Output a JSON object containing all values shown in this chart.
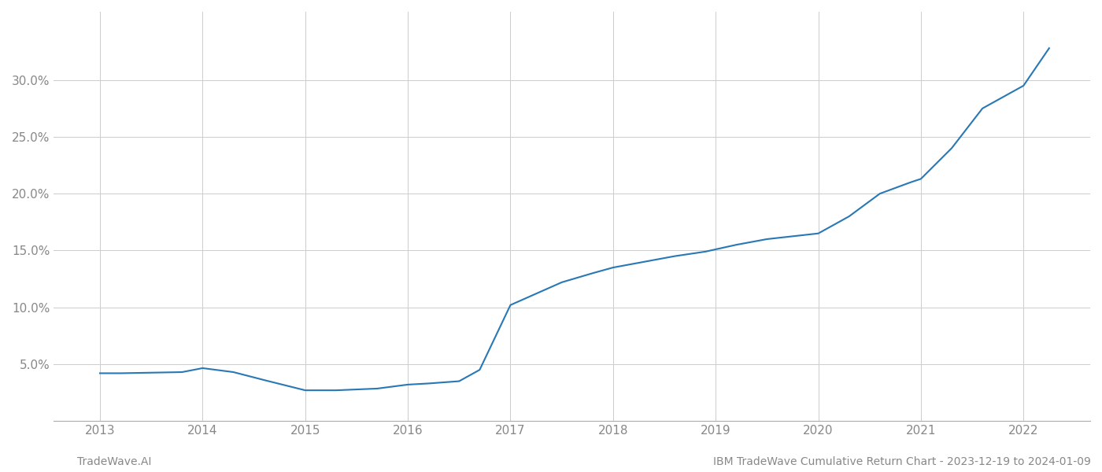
{
  "x_data": [
    2013.0,
    2013.2,
    2013.5,
    2013.8,
    2014.0,
    2014.3,
    2014.6,
    2015.0,
    2015.3,
    2015.7,
    2016.0,
    2016.2,
    2016.5,
    2016.7,
    2017.0,
    2017.2,
    2017.5,
    2017.8,
    2018.0,
    2018.3,
    2018.6,
    2018.9,
    2019.0,
    2019.2,
    2019.5,
    2019.8,
    2020.0,
    2020.3,
    2020.6,
    2020.9,
    2021.0,
    2021.3,
    2021.6,
    2021.9,
    2022.0,
    2022.25
  ],
  "y_data": [
    4.2,
    4.2,
    4.25,
    4.3,
    4.65,
    4.3,
    3.6,
    2.7,
    2.7,
    2.85,
    3.2,
    3.3,
    3.5,
    4.5,
    10.2,
    11.0,
    12.2,
    13.0,
    13.5,
    14.0,
    14.5,
    14.9,
    15.1,
    15.5,
    16.0,
    16.3,
    16.5,
    18.0,
    20.0,
    21.0,
    21.3,
    24.0,
    27.5,
    29.0,
    29.5,
    32.8
  ],
  "line_color": "#2878b5",
  "bg_color": "#ffffff",
  "grid_color": "#cccccc",
  "yticks": [
    5.0,
    10.0,
    15.0,
    20.0,
    25.0,
    30.0
  ],
  "ylim": [
    0.0,
    36.0
  ],
  "xlim": [
    2012.55,
    2022.65
  ],
  "xlabel_years": [
    2013,
    2014,
    2015,
    2016,
    2017,
    2018,
    2019,
    2020,
    2021,
    2022
  ],
  "footer_left": "TradeWave.AI",
  "footer_right": "IBM TradeWave Cumulative Return Chart - 2023-12-19 to 2024-01-09",
  "line_width": 1.5
}
